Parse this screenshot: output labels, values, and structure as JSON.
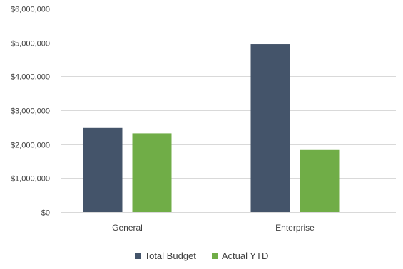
{
  "chart_data": {
    "type": "bar",
    "title": "",
    "xlabel": "",
    "ylabel": "",
    "categories": [
      "General",
      "Enterprise"
    ],
    "series": [
      {
        "name": "Total Budget",
        "color": "#44546a",
        "values": [
          2480000,
          4950000
        ]
      },
      {
        "name": "Actual YTD",
        "color": "#70ad47",
        "values": [
          2320000,
          1830000
        ]
      }
    ],
    "ylim": [
      0,
      6000000
    ],
    "y_ticks": [
      0,
      1000000,
      2000000,
      3000000,
      4000000,
      5000000,
      6000000
    ],
    "y_tick_labels": [
      "$0",
      "$1,000,000",
      "$2,000,000",
      "$3,000,000",
      "$4,000,000",
      "$5,000,000",
      "$6,000,000"
    ],
    "grid": true,
    "gridline_color": "#d9d9d9",
    "legend_position": "bottom"
  }
}
